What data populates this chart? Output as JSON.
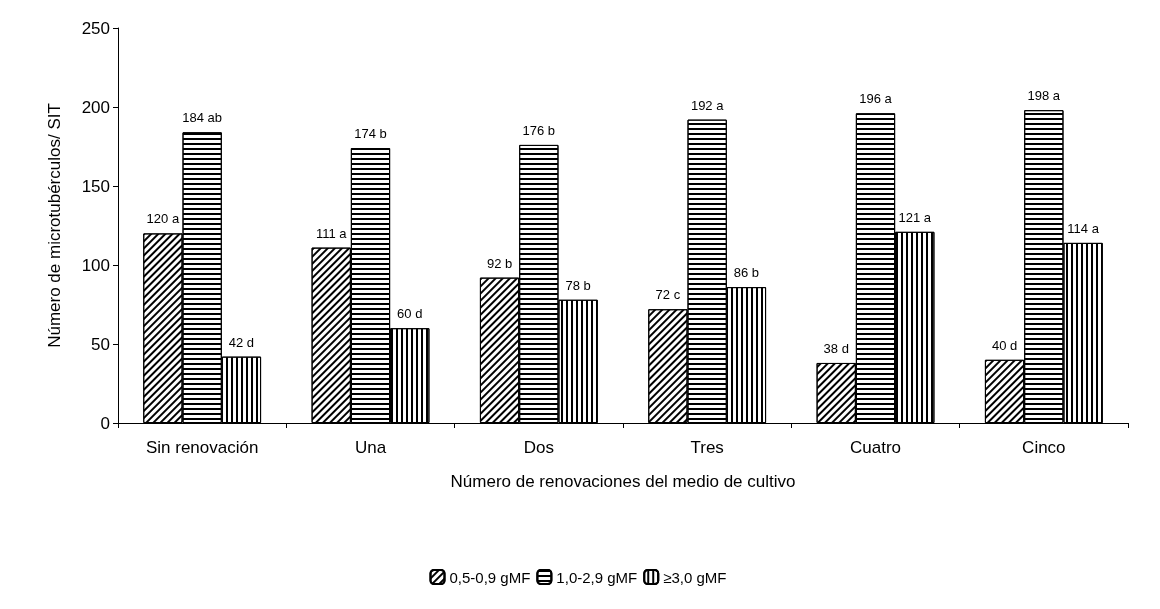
{
  "chart_data": {
    "type": "bar",
    "xlabel": "Número de renovaciones del medio de cultivo",
    "ylabel": "Número de microtubérculos/ SIT",
    "categories": [
      "Sin renovación",
      "Una",
      "Dos",
      "Tres",
      "Cuatro",
      "Cinco"
    ],
    "series": [
      {
        "name": "0,5-0,9 gMF",
        "color": "#000000",
        "values": [
          120,
          111,
          92,
          72,
          38,
          40
        ],
        "value_labels": [
          "120 a",
          "111 a",
          "92 b",
          "72 c",
          "38 d",
          "40 d"
        ]
      },
      {
        "name": "1,0-2,9 gMF",
        "color": "#000000",
        "values": [
          184,
          174,
          176,
          192,
          196,
          198
        ],
        "value_labels": [
          "184 ab",
          "174 b",
          "176 b",
          "192 a",
          "196 a",
          "198 a"
        ]
      },
      {
        "name": "≥3,0 gMF",
        "color": "#000000",
        "values": [
          42,
          60,
          78,
          86,
          121,
          114
        ],
        "value_labels": [
          "42 d",
          "60 d",
          "78 b",
          "86 b",
          "121 a",
          "114 a"
        ]
      }
    ],
    "ylim": [
      0,
      250
    ],
    "yticks": [
      0,
      50,
      100,
      150,
      200,
      250
    ],
    "grid": false,
    "legend": "bottom"
  }
}
